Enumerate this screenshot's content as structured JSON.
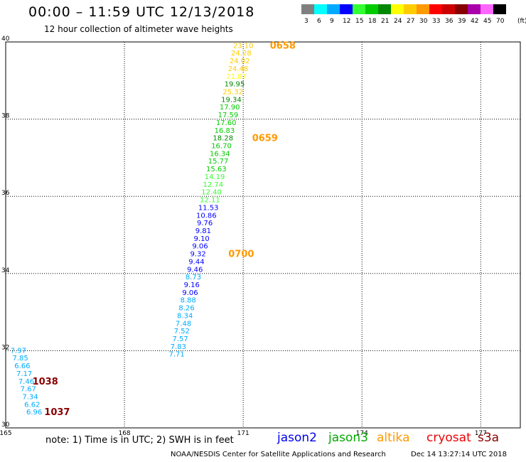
{
  "header": {
    "title": "00:00 – 11:59 UTC 12/13/2018",
    "subtitle": "12 hour collection of altimeter wave heights"
  },
  "colorbar": {
    "unit": "(ft)",
    "swatches": [
      {
        "color": "#808080",
        "label": "3"
      },
      {
        "color": "#00ffff",
        "label": "6"
      },
      {
        "color": "#00aaff",
        "label": "9"
      },
      {
        "color": "#0000ff",
        "label": "12"
      },
      {
        "color": "#33ff33",
        "label": "15"
      },
      {
        "color": "#00cc00",
        "label": "18"
      },
      {
        "color": "#008800",
        "label": "21"
      },
      {
        "color": "#ffff00",
        "label": "24"
      },
      {
        "color": "#ffcc00",
        "label": "27"
      },
      {
        "color": "#ff9900",
        "label": "30"
      },
      {
        "color": "#ff0000",
        "label": "33"
      },
      {
        "color": "#cc0000",
        "label": "36"
      },
      {
        "color": "#880000",
        "label": "39"
      },
      {
        "color": "#aa00aa",
        "label": "42"
      },
      {
        "color": "#ff66ff",
        "label": "45"
      },
      {
        "color": "#000000",
        "label": "70"
      }
    ]
  },
  "footer": {
    "note": "note: 1) Time is in UTC; 2) SWH is in feet",
    "satellites": [
      {
        "name": "jason2",
        "color": "#0000ee"
      },
      {
        "name": "jason3",
        "color": "#00aa00"
      },
      {
        "name": "altika",
        "color": "#ff9900"
      },
      {
        "name": "cryosat",
        "color": "#ee0000"
      },
      {
        "name": "s3a",
        "color": "#880000"
      }
    ],
    "credit": "NOAA/NESDIS Center for Satellite Applications and Research",
    "timestamp": "Dec 14 13:27:14 UTC 2018"
  },
  "chart_data": {
    "type": "scatter",
    "xlim": [
      165,
      178
    ],
    "ylim": [
      30,
      40
    ],
    "xticks": [
      "165",
      "168",
      "171",
      "174",
      "177"
    ],
    "yticks": [
      "30",
      "32",
      "34",
      "36",
      "38",
      "40"
    ],
    "grid": true,
    "series": [
      {
        "name": "altika",
        "points": [
          {
            "x": 171.0,
            "y": 39.92,
            "v": "23.10",
            "color": "#ffcc00"
          },
          {
            "x": 170.95,
            "y": 39.72,
            "v": "24.28",
            "color": "#ffcc00"
          },
          {
            "x": 170.91,
            "y": 39.52,
            "v": "24.02",
            "color": "#ffcc00"
          },
          {
            "x": 170.87,
            "y": 39.32,
            "v": "24.48",
            "color": "#ffcc00"
          },
          {
            "x": 170.83,
            "y": 39.12,
            "v": "21.87",
            "color": "#ffff00"
          },
          {
            "x": 170.78,
            "y": 38.92,
            "v": "19.95",
            "color": "#008800"
          },
          {
            "x": 170.74,
            "y": 38.72,
            "v": "25.32",
            "color": "#ffcc00"
          },
          {
            "x": 170.7,
            "y": 38.52,
            "v": "19.34",
            "color": "#008800"
          },
          {
            "x": 170.66,
            "y": 38.32,
            "v": "17.90",
            "color": "#00cc00"
          },
          {
            "x": 170.62,
            "y": 38.12,
            "v": "17.59",
            "color": "#00cc00"
          },
          {
            "x": 170.57,
            "y": 37.92,
            "v": "17.60",
            "color": "#00cc00"
          },
          {
            "x": 170.53,
            "y": 37.72,
            "v": "16.83",
            "color": "#00cc00"
          },
          {
            "x": 170.49,
            "y": 37.52,
            "v": "18.28",
            "color": "#008800"
          },
          {
            "x": 170.45,
            "y": 37.32,
            "v": "16.70",
            "color": "#00cc00"
          },
          {
            "x": 170.41,
            "y": 37.12,
            "v": "16.34",
            "color": "#00cc00"
          },
          {
            "x": 170.37,
            "y": 36.92,
            "v": "15.77",
            "color": "#00cc00"
          },
          {
            "x": 170.32,
            "y": 36.72,
            "v": "15.63",
            "color": "#00cc00"
          },
          {
            "x": 170.28,
            "y": 36.52,
            "v": "14.19",
            "color": "#33ff33"
          },
          {
            "x": 170.24,
            "y": 36.32,
            "v": "12.74",
            "color": "#33ff33"
          },
          {
            "x": 170.2,
            "y": 36.12,
            "v": "12.40",
            "color": "#33ff33"
          },
          {
            "x": 170.16,
            "y": 35.92,
            "v": "12.11",
            "color": "#33ff33"
          },
          {
            "x": 170.12,
            "y": 35.72,
            "v": "11.53",
            "color": "#0000ff"
          },
          {
            "x": 170.07,
            "y": 35.52,
            "v": "10.86",
            "color": "#0000ff"
          },
          {
            "x": 170.03,
            "y": 35.32,
            "v": "9.76",
            "color": "#0000ff"
          },
          {
            "x": 169.99,
            "y": 35.12,
            "v": "9.81",
            "color": "#0000ff"
          },
          {
            "x": 169.95,
            "y": 34.92,
            "v": "9.10",
            "color": "#0000ff"
          },
          {
            "x": 169.91,
            "y": 34.72,
            "v": "9.06",
            "color": "#0000ff"
          },
          {
            "x": 169.86,
            "y": 34.52,
            "v": "9.32",
            "color": "#0000ff"
          },
          {
            "x": 169.82,
            "y": 34.32,
            "v": "9.44",
            "color": "#0000ff"
          },
          {
            "x": 169.78,
            "y": 34.12,
            "v": "9.46",
            "color": "#0000ff"
          },
          {
            "x": 169.74,
            "y": 33.92,
            "v": "8.73",
            "color": "#00aaff"
          },
          {
            "x": 169.7,
            "y": 33.72,
            "v": "9.16",
            "color": "#0000ff"
          },
          {
            "x": 169.66,
            "y": 33.52,
            "v": "9.06",
            "color": "#0000ff"
          },
          {
            "x": 169.61,
            "y": 33.32,
            "v": "8.88",
            "color": "#00aaff"
          },
          {
            "x": 169.57,
            "y": 33.12,
            "v": "8.26",
            "color": "#00aaff"
          },
          {
            "x": 169.53,
            "y": 32.92,
            "v": "8.34",
            "color": "#00aaff"
          },
          {
            "x": 169.49,
            "y": 32.72,
            "v": "7.48",
            "color": "#00aaff"
          },
          {
            "x": 169.45,
            "y": 32.52,
            "v": "7.52",
            "color": "#00aaff"
          },
          {
            "x": 169.41,
            "y": 32.32,
            "v": "7.57",
            "color": "#00aaff"
          },
          {
            "x": 169.36,
            "y": 32.12,
            "v": "7.83",
            "color": "#00aaff"
          },
          {
            "x": 169.32,
            "y": 31.92,
            "v": "7.71",
            "color": "#00aaff"
          }
        ]
      },
      {
        "name": "s3a",
        "points": [
          {
            "x": 165.32,
            "y": 32.02,
            "v": "7.97",
            "color": "#00aaff"
          },
          {
            "x": 165.37,
            "y": 31.82,
            "v": "7.85",
            "color": "#00aaff"
          },
          {
            "x": 165.42,
            "y": 31.62,
            "v": "6.66",
            "color": "#00aaff"
          },
          {
            "x": 165.47,
            "y": 31.42,
            "v": "7.17",
            "color": "#00aaff"
          },
          {
            "x": 165.52,
            "y": 31.22,
            "v": "7.46",
            "color": "#00aaff"
          },
          {
            "x": 165.57,
            "y": 31.02,
            "v": "7.67",
            "color": "#00aaff"
          },
          {
            "x": 165.62,
            "y": 30.82,
            "v": "7.34",
            "color": "#00aaff"
          },
          {
            "x": 165.67,
            "y": 30.62,
            "v": "6.62",
            "color": "#00aaff"
          },
          {
            "x": 165.72,
            "y": 30.42,
            "v": "6.96",
            "color": "#00aaff"
          }
        ]
      }
    ],
    "time_labels": [
      {
        "x": 172.0,
        "y": 39.92,
        "text": "0658",
        "color": "#ff9900"
      },
      {
        "x": 171.55,
        "y": 37.52,
        "text": "0659",
        "color": "#ff9900"
      },
      {
        "x": 170.95,
        "y": 34.52,
        "text": "0700",
        "color": "#ff9900"
      },
      {
        "x": 166.0,
        "y": 31.22,
        "text": "1038",
        "color": "#880000"
      },
      {
        "x": 166.3,
        "y": 30.42,
        "text": "1037",
        "color": "#880000"
      }
    ]
  }
}
